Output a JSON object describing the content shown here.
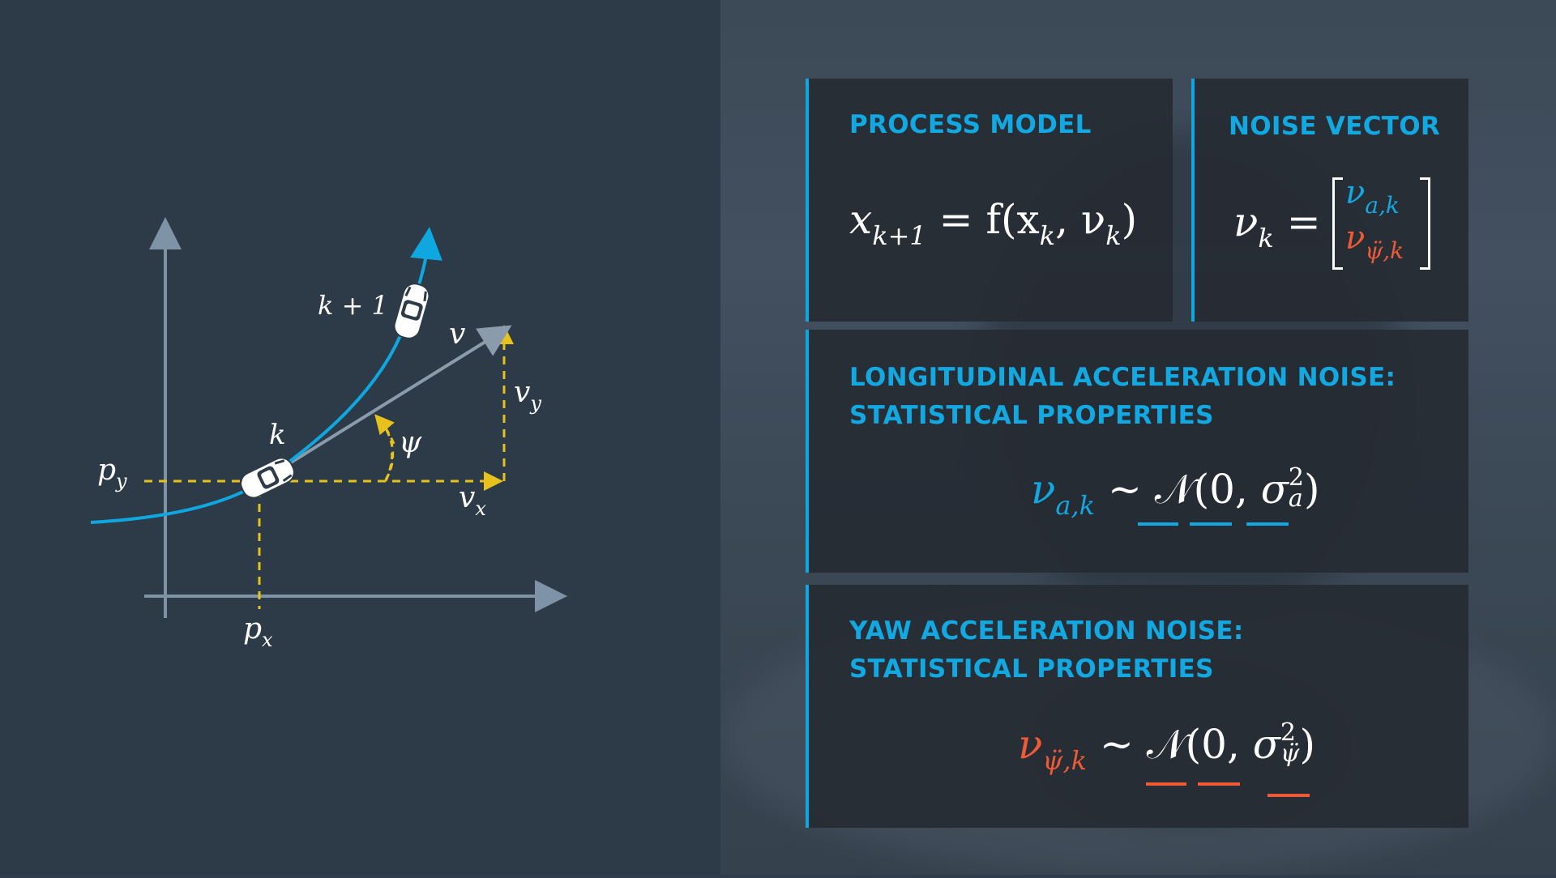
{
  "diagram": {
    "labels": {
      "py": "p",
      "py_sub": "y",
      "px": "p",
      "px_sub": "x",
      "k": "k",
      "k_plus_1": "k + 1",
      "v": "v",
      "vy": "v",
      "vy_sub": "y",
      "vx": "v",
      "vx_sub": "x",
      "psi": "ψ"
    },
    "colors": {
      "trajectory": "#0fa7e0",
      "axes": "#7f93a6",
      "dashed": "#e8c21c",
      "velocity": "#8a9bab"
    }
  },
  "cards": {
    "process_model": {
      "title": "PROCESS MODEL",
      "equation": {
        "x": "x",
        "x_sub": "k+1",
        "eq": " = f(x",
        "x_sub2": "k",
        "comma": ", ν",
        "nu_sub": "k",
        "close": ")"
      }
    },
    "noise_vector": {
      "title": "NOISE VECTOR",
      "lhs": "ν",
      "lhs_sub": "k",
      "eq": " = ",
      "top": "ν",
      "top_sub": "a,k",
      "bottom": "ν",
      "bottom_sub": "ψ̈,k"
    },
    "longitudinal": {
      "title": "LONGITUDINAL ACCELERATION NOISE:\nSTATISTICAL PROPERTIES",
      "nu": "ν",
      "nu_sub": "a,k",
      "tilde": " ~ ",
      "dist": "𝒩",
      "open": "(0,",
      "sigma": "σ",
      "sigma_sup": "2",
      "sigma_sub": "a",
      "close": ")"
    },
    "yaw": {
      "title": "YAW ACCELERATION NOISE:\nSTATISTICAL PROPERTIES",
      "nu": "ν",
      "nu_sub": "ψ̈,k",
      "tilde": " ~ ",
      "dist": "𝒩",
      "open": "(0,",
      "sigma": "σ",
      "sigma_sup": "2",
      "sigma_sub": "ψ̈",
      "close": ")"
    }
  },
  "colors": {
    "accent_blue": "#12a8e2",
    "accent_orange": "#ef5a36",
    "card_bg": "#262b33",
    "left_bg": "#2d3a48"
  }
}
